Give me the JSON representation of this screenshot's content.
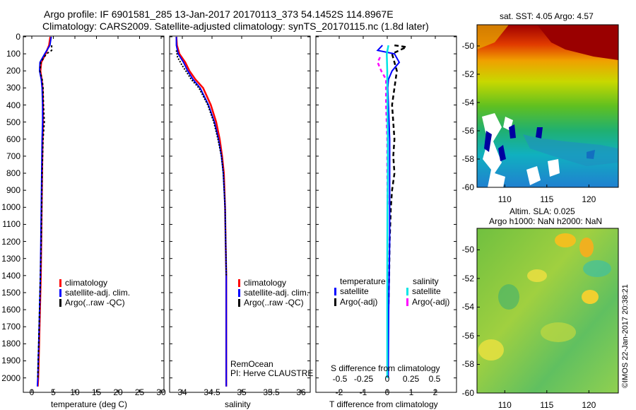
{
  "header": {
    "line1": "Argo profile: IF 6901581_285 13-Jan-2017 20170113_373 54.1452S 114.8967E",
    "line2": "Climatology: CARS2009. Satellite-adjusted climatology: synTS_20170115.nc (1.8d later)"
  },
  "depth_ticks": [
    0,
    100,
    200,
    300,
    400,
    500,
    600,
    700,
    800,
    900,
    1000,
    1100,
    1200,
    1300,
    1400,
    1500,
    1600,
    1700,
    1800,
    1900,
    2000
  ],
  "colors": {
    "climatology": "#ff0000",
    "satellite": "#0000ff",
    "argo": "#000000",
    "salinity_sat": "#00e5e5",
    "salinity_argo": "#ff00ff"
  },
  "temp_panel": {
    "xlabel": "temperature (deg C)",
    "xticks": [
      0,
      5,
      10,
      15,
      20,
      25,
      30
    ],
    "legend": [
      "climatology",
      "satellite-adj. clim.",
      "Argo(..raw -QC)"
    ]
  },
  "sal_panel": {
    "xlabel": "salinity",
    "xticks": [
      "34",
      "34.5",
      "35",
      "35.5",
      "36"
    ],
    "legend": [
      "climatology",
      "satellite-adj. clim.",
      "Argo(..raw -QC)"
    ],
    "note1": "RemOcean",
    "note2": "PI: Herve CLAUSTRE"
  },
  "diff_panel": {
    "xlabel": "T difference from climatology",
    "xticks": [
      "-2",
      "-1",
      "0",
      "1",
      "2"
    ],
    "top_axis_label": "S difference from climatology",
    "top_ticks": [
      "-0.5",
      "-0.25",
      "0",
      "0.25",
      "0.5"
    ],
    "legend_temp_title": "temperature",
    "legend_sal_title": "salinity",
    "legend_temp": [
      "satellite",
      "Argo(-adj)"
    ],
    "legend_sal": [
      "satellite",
      "Argo(-adj)"
    ]
  },
  "sst_map": {
    "title": "sat. SST: 4.05 Argo: 4.57",
    "xticks": [
      "110",
      "115",
      "120"
    ],
    "yticks": [
      "-50",
      "-52",
      "-54",
      "-56",
      "-58",
      "-60"
    ]
  },
  "sla_map": {
    "title1": "Altim. SLA: 0.025",
    "title2": "Argo h1000: NaN h2000: NaN",
    "xticks": [
      "110",
      "115",
      "120"
    ],
    "yticks": [
      "-50",
      "-52",
      "-54",
      "-56",
      "-58",
      "-60"
    ]
  },
  "stamp": "©IMOS 22-Jan-2017 20:38:21",
  "chart_data": [
    {
      "type": "line",
      "xlabel": "temperature (deg C)",
      "ylabel": "",
      "xlim": [
        -1,
        31
      ],
      "ylim": [
        2050,
        0
      ],
      "series": [
        {
          "name": "climatology",
          "x": [
            4.3,
            4.0,
            3.2,
            2.2,
            2.0,
            2.3,
            2.5,
            2.6,
            2.6,
            2.5,
            2.4,
            2.3,
            2.2,
            2.1,
            2.0,
            1.9,
            1.8,
            1.7,
            1.6,
            1.5,
            1.4
          ],
          "y": [
            0,
            50,
            100,
            150,
            200,
            250,
            300,
            400,
            500,
            600,
            800,
            1000,
            1200,
            1400,
            1500,
            1600,
            1700,
            1800,
            1900,
            2000,
            2050
          ]
        },
        {
          "name": "satellite-adj. clim.",
          "x": [
            4.5,
            4.2,
            3.0,
            1.9,
            1.8,
            2.2,
            2.4,
            2.5,
            2.5,
            2.4,
            2.3,
            2.2,
            2.1,
            2.0,
            1.9,
            1.8,
            1.7,
            1.6,
            1.5,
            1.4,
            1.3
          ],
          "y": [
            0,
            50,
            100,
            150,
            200,
            250,
            300,
            400,
            500,
            600,
            800,
            1000,
            1200,
            1400,
            1500,
            1600,
            1700,
            1800,
            1900,
            2000,
            2050
          ]
        },
        {
          "name": "Argo(..raw -QC)",
          "x": [
            4.6,
            4.6,
            3.4,
            2.1,
            1.9,
            2.4,
            2.6,
            2.7,
            2.9,
            2.6,
            2.4,
            2.3,
            2.2,
            2.0,
            1.9,
            1.8,
            1.7,
            1.6,
            1.5,
            1.4
          ],
          "y": [
            50,
            80,
            100,
            150,
            200,
            250,
            300,
            400,
            500,
            600,
            800,
            1000,
            1200,
            1400,
            1500,
            1600,
            1700,
            1800,
            1900,
            2000
          ]
        }
      ]
    },
    {
      "type": "line",
      "xlabel": "salinity",
      "ylabel": "",
      "xlim": [
        33.85,
        36.1
      ],
      "ylim": [
        2050,
        0
      ],
      "series": [
        {
          "name": "climatology",
          "x": [
            33.9,
            33.91,
            33.95,
            34.05,
            34.12,
            34.22,
            34.35,
            34.48,
            34.57,
            34.63,
            34.67,
            34.7,
            34.72,
            34.73,
            34.74,
            34.74,
            34.74
          ],
          "y": [
            0,
            50,
            100,
            150,
            200,
            250,
            300,
            400,
            500,
            600,
            700,
            800,
            1000,
            1200,
            1400,
            1600,
            2050
          ]
        },
        {
          "name": "satellite-adj. clim.",
          "x": [
            33.9,
            33.9,
            33.93,
            34.02,
            34.09,
            34.18,
            34.3,
            34.44,
            34.54,
            34.61,
            34.66,
            34.69,
            34.72,
            34.73,
            34.74,
            34.74,
            34.74
          ],
          "y": [
            0,
            50,
            100,
            150,
            200,
            250,
            300,
            400,
            500,
            600,
            700,
            800,
            1000,
            1200,
            1400,
            1600,
            2050
          ]
        },
        {
          "name": "Argo(..raw -QC)",
          "x": [
            33.9,
            33.92,
            34.0,
            34.06,
            34.15,
            34.28,
            34.43,
            34.53,
            34.6,
            34.66,
            34.69,
            34.72,
            34.73,
            34.74
          ],
          "y": [
            80,
            120,
            170,
            200,
            250,
            300,
            400,
            500,
            600,
            700,
            800,
            1000,
            1200,
            1400
          ]
        }
      ]
    },
    {
      "type": "line",
      "xlabel": "T difference from climatology",
      "ylabel": "",
      "xlim": [
        -2.8,
        2.8
      ],
      "ylim": [
        2050,
        0
      ],
      "series": [
        {
          "name": "satellite",
          "x": [
            -0.2,
            -0.4,
            0.3,
            0.5,
            0.2,
            0.05,
            0.02,
            0.05,
            0.1,
            0.1,
            0.1,
            0.1,
            0.08,
            0.06,
            0.05,
            0.04
          ],
          "y": [
            50,
            80,
            100,
            150,
            200,
            250,
            300,
            400,
            600,
            800,
            1000,
            1200,
            1400,
            1600,
            1800,
            2000
          ]
        },
        {
          "name": "Argo(-adj)",
          "x": [
            0.3,
            0.8,
            0.2,
            0.4,
            0.3,
            0.2,
            0.25,
            0.3,
            0.25,
            0.3,
            0.2,
            0.15,
            0.1,
            0.08,
            0.05
          ],
          "y": [
            50,
            60,
            100,
            200,
            300,
            400,
            500,
            600,
            700,
            800,
            900,
            1000,
            1200,
            1400,
            1600
          ]
        },
        {
          "name": "salinity satellite",
          "x": [
            0.05,
            -0.02,
            0.0,
            0.0,
            0.01,
            0.02,
            0.02,
            0.01,
            0.0,
            0.0,
            0.0
          ],
          "y": [
            50,
            100,
            200,
            300,
            400,
            600,
            800,
            1000,
            1400,
            1800,
            2000
          ]
        },
        {
          "name": "salinity Argo(-adj)",
          "x": [
            -0.3,
            -0.4,
            -0.25,
            -0.05,
            -0.05,
            0.0,
            0.0,
            0.02
          ],
          "y": [
            120,
            150,
            200,
            250,
            400,
            600,
            800,
            1000
          ]
        }
      ]
    }
  ]
}
